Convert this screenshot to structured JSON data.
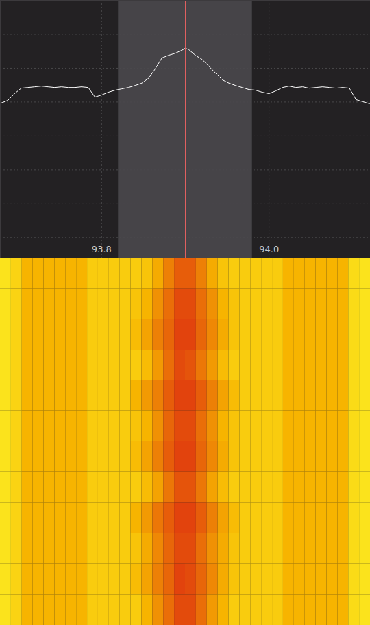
{
  "chart_data": [
    {
      "type": "line",
      "x": [
        93.68,
        93.688,
        93.696,
        93.704,
        93.712,
        93.72,
        93.728,
        93.736,
        93.744,
        93.752,
        93.76,
        93.768,
        93.776,
        93.784,
        93.792,
        93.8,
        93.808,
        93.816,
        93.824,
        93.832,
        93.84,
        93.848,
        93.856,
        93.864,
        93.872,
        93.88,
        93.888,
        93.896,
        93.9,
        93.904,
        93.912,
        93.92,
        93.928,
        93.936,
        93.944,
        93.952,
        93.96,
        93.968,
        93.976,
        93.984,
        93.992,
        94.0,
        94.008,
        94.016,
        94.024,
        94.032,
        94.04,
        94.048,
        94.056,
        94.064,
        94.072,
        94.08,
        94.088,
        94.096,
        94.104,
        94.112,
        94.12
      ],
      "values": [
        -30.3,
        -29.5,
        -27.5,
        -25.9,
        -25.7,
        -25.5,
        -25.3,
        -25.5,
        -25.7,
        -25.5,
        -25.7,
        -25.7,
        -25.5,
        -25.7,
        -28.5,
        -27.9,
        -27.1,
        -26.5,
        -26.1,
        -25.7,
        -25.1,
        -24.4,
        -23.0,
        -20.2,
        -17.0,
        -16.2,
        -15.6,
        -14.7,
        -14.1,
        -14.5,
        -16.2,
        -17.4,
        -19.4,
        -21.4,
        -23.4,
        -24.4,
        -25.1,
        -25.7,
        -26.3,
        -26.5,
        -27.1,
        -27.5,
        -26.7,
        -25.7,
        -25.3,
        -25.7,
        -25.5,
        -25.9,
        -25.7,
        -25.5,
        -25.7,
        -25.9,
        -25.7,
        -25.9,
        -29.3,
        -29.9,
        -30.5
      ],
      "color": "#ffffff",
      "xlim": [
        93.679,
        94.121
      ],
      "xticks": [
        93.8,
        {
          "value": 94.0,
          "label": "94.0"
        }
      ],
      "ylim": [
        -76,
        0
      ],
      "yticks": [
        -70,
        -60,
        -50,
        -40,
        -30,
        -20,
        -10
      ],
      "grid": true,
      "tick_labels": "x",
      "selection": [
        93.82,
        93.98
      ],
      "tuned": 93.9
    },
    {
      "type": "heatmap",
      "xlim": [
        93.679,
        94.121
      ],
      "bins": [
        93.679,
        93.692,
        93.705,
        93.718,
        93.731,
        93.744,
        93.757,
        93.77,
        93.783,
        93.796,
        93.809,
        93.822,
        93.835,
        93.848,
        93.861,
        93.874,
        93.887,
        93.9,
        93.913,
        93.926,
        93.939,
        93.952,
        93.965,
        93.978,
        93.991,
        94.004,
        94.017,
        94.03,
        94.043,
        94.056,
        94.069,
        94.082,
        94.095,
        94.108,
        94.121
      ],
      "rows": [
        [
          -32,
          -30,
          -26,
          -26,
          -26,
          -26,
          -26,
          -26,
          -29,
          -29,
          -29,
          -29,
          -29,
          -28,
          -25,
          -20,
          -16,
          -16,
          -20,
          -25,
          -28,
          -29,
          -29,
          -29,
          -29,
          -29,
          -26,
          -26,
          -26,
          -26,
          -26,
          -26,
          -31,
          -32
        ],
        [
          -32,
          -30,
          -26,
          -26,
          -26,
          -26,
          -26,
          -26,
          -29,
          -29,
          -29,
          -29,
          -28,
          -26,
          -22,
          -18,
          -14,
          -14,
          -18,
          -22,
          -26,
          -28,
          -29,
          -29,
          -29,
          -29,
          -26,
          -26,
          -26,
          -26,
          -26,
          -26,
          -31,
          -32
        ],
        [
          -32,
          -30,
          -26,
          -26,
          -26,
          -26,
          -26,
          -26,
          -29,
          -29,
          -29,
          -29,
          -27,
          -24,
          -20,
          -17,
          -13,
          -13,
          -17,
          -21,
          -25,
          -28,
          -29,
          -29,
          -29,
          -29,
          -26,
          -26,
          -26,
          -26,
          -26,
          -26,
          -31,
          -32
        ],
        [
          -32,
          -30,
          -26,
          -26,
          -26,
          -26,
          -26,
          -26,
          -29,
          -29,
          -29,
          -29,
          -29,
          -27,
          -23,
          -18,
          -14,
          -15,
          -19,
          -23,
          -27,
          -29,
          -29,
          -29,
          -29,
          -29,
          -26,
          -26,
          -26,
          -26,
          -26,
          -26,
          -31,
          -32
        ],
        [
          -32,
          -30,
          -26,
          -26,
          -26,
          -26,
          -26,
          -26,
          -29,
          -29,
          -29,
          -29,
          -26,
          -23,
          -20,
          -16,
          -13,
          -13,
          -16,
          -20,
          -24,
          -27,
          -29,
          -29,
          -29,
          -29,
          -26,
          -26,
          -26,
          -26,
          -26,
          -26,
          -31,
          -32
        ],
        [
          -32,
          -30,
          -26,
          -26,
          -26,
          -26,
          -26,
          -26,
          -29,
          -29,
          -29,
          -29,
          -28,
          -26,
          -22,
          -17,
          -14,
          -14,
          -18,
          -22,
          -26,
          -28,
          -29,
          -29,
          -29,
          -29,
          -26,
          -26,
          -26,
          -26,
          -26,
          -26,
          -31,
          -32
        ],
        [
          -32,
          -30,
          -26,
          -26,
          -26,
          -26,
          -26,
          -26,
          -29,
          -29,
          -29,
          -29,
          -27,
          -24,
          -20,
          -16,
          -13,
          -13,
          -17,
          -21,
          -25,
          -28,
          -29,
          -29,
          -29,
          -29,
          -26,
          -26,
          -26,
          -26,
          -26,
          -26,
          -31,
          -32
        ],
        [
          -32,
          -30,
          -26,
          -26,
          -26,
          -26,
          -26,
          -26,
          -29,
          -29,
          -29,
          -29,
          -29,
          -27,
          -24,
          -19,
          -15,
          -15,
          -19,
          -24,
          -27,
          -29,
          -29,
          -29,
          -29,
          -29,
          -26,
          -26,
          -26,
          -26,
          -26,
          -26,
          -31,
          -32
        ],
        [
          -32,
          -30,
          -26,
          -26,
          -26,
          -26,
          -26,
          -26,
          -29,
          -29,
          -29,
          -29,
          -26,
          -23,
          -19,
          -16,
          -13,
          -13,
          -16,
          -20,
          -24,
          -27,
          -29,
          -29,
          -29,
          -29,
          -26,
          -26,
          -26,
          -26,
          -26,
          -26,
          -31,
          -32
        ],
        [
          -32,
          -30,
          -26,
          -26,
          -26,
          -26,
          -26,
          -26,
          -29,
          -29,
          -29,
          -29,
          -28,
          -25,
          -21,
          -17,
          -14,
          -14,
          -18,
          -22,
          -25,
          -28,
          -29,
          -29,
          -29,
          -29,
          -26,
          -26,
          -26,
          -26,
          -26,
          -26,
          -31,
          -32
        ],
        [
          -32,
          -30,
          -26,
          -26,
          -26,
          -26,
          -26,
          -26,
          -29,
          -29,
          -29,
          -29,
          -27,
          -24,
          -20,
          -17,
          -13,
          -14,
          -17,
          -21,
          -25,
          -28,
          -29,
          -29,
          -29,
          -29,
          -26,
          -26,
          -26,
          -26,
          -26,
          -26,
          -31,
          -32
        ],
        [
          -32,
          -30,
          -26,
          -26,
          -26,
          -26,
          -26,
          -26,
          -29,
          -29,
          -29,
          -29,
          -29,
          -26,
          -22,
          -18,
          -14,
          -14,
          -18,
          -23,
          -26,
          -29,
          -29,
          -29,
          -29,
          -29,
          -26,
          -26,
          -26,
          -26,
          -26,
          -26,
          -31,
          -32
        ]
      ],
      "color_domain": [
        -32,
        -26,
        -12
      ],
      "color_range": [
        "#fbe31c",
        "#f7b400",
        "#e03a0e"
      ],
      "tick_labels": false
    }
  ]
}
